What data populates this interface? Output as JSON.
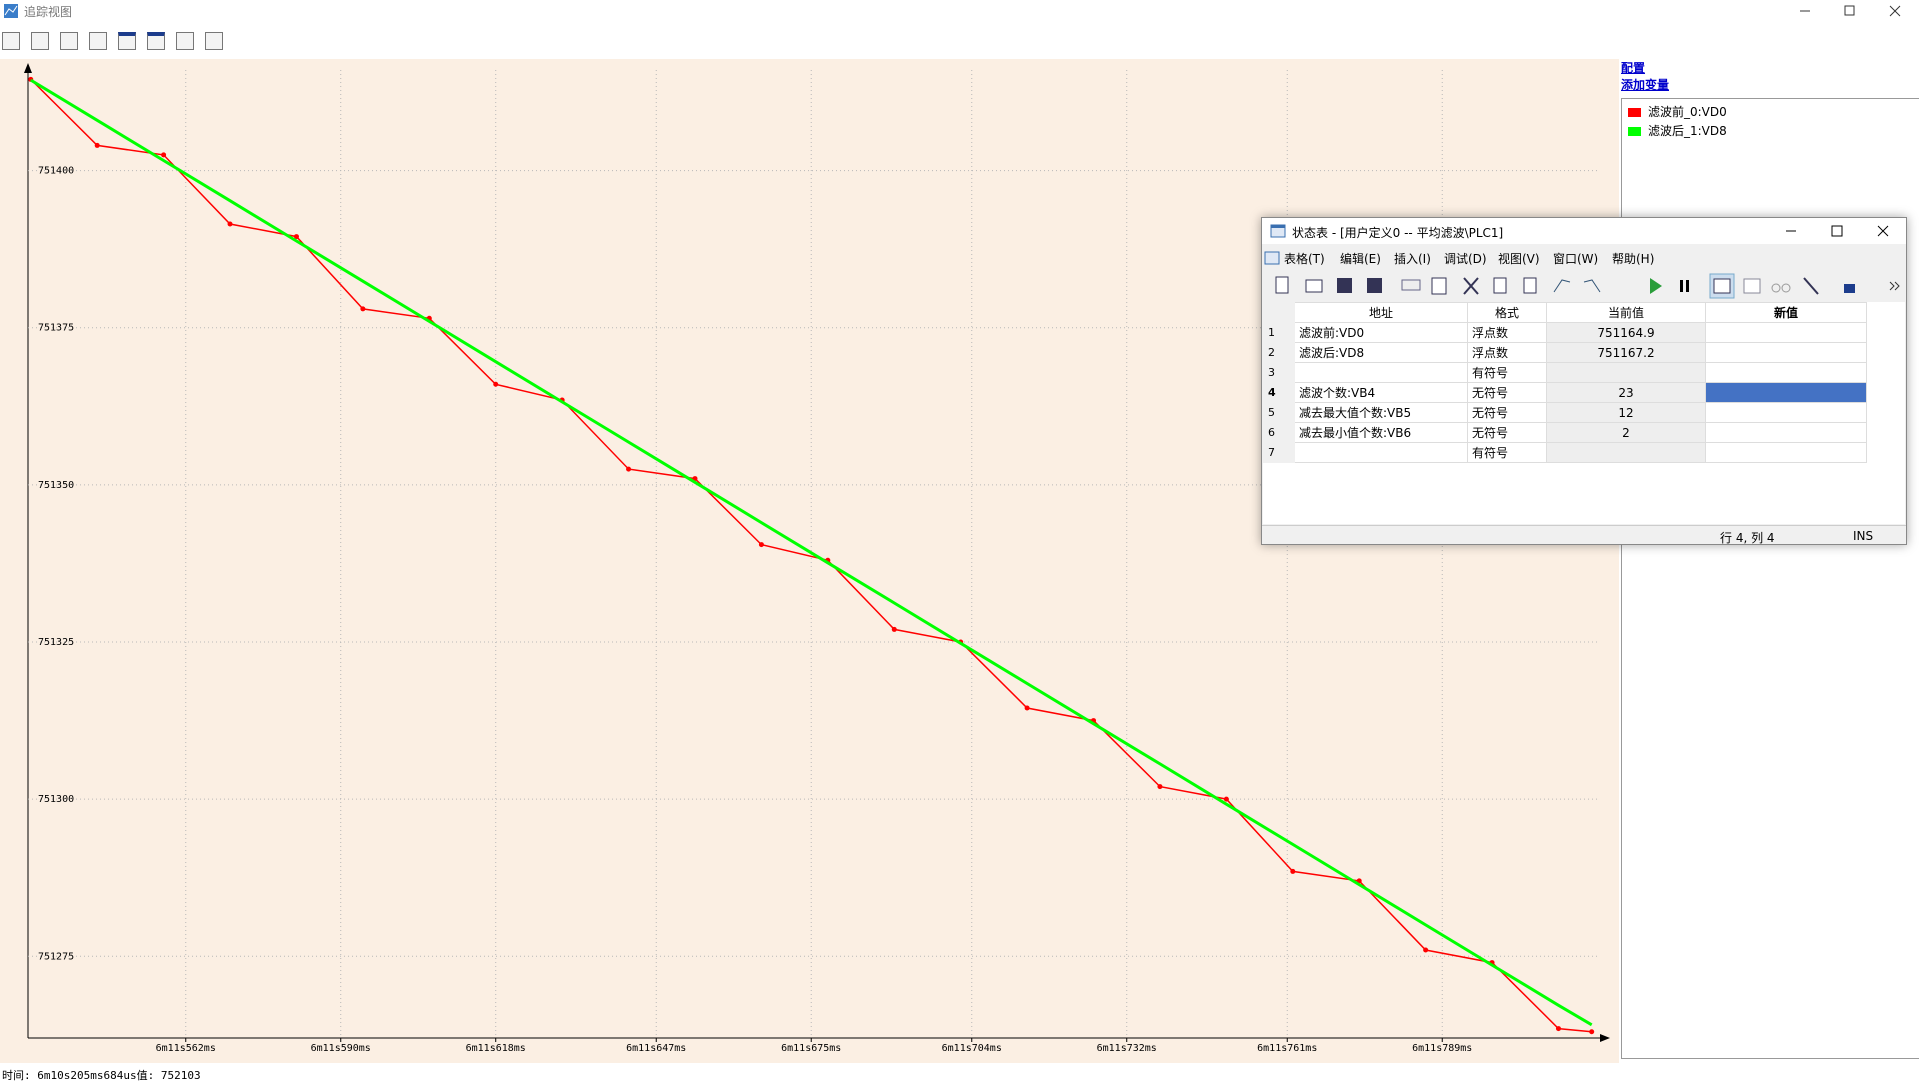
{
  "app_title": "追踪视图",
  "chart_data": {
    "type": "line",
    "x": [
      534,
      546,
      558,
      570,
      582,
      594,
      606,
      618,
      630,
      642,
      654,
      666,
      678,
      690,
      702,
      714,
      726,
      738,
      750,
      762,
      774,
      786,
      798,
      810,
      816
    ],
    "xlim": [
      533.5,
      817.5
    ],
    "xticks": [
      {
        "value": 562,
        "label": "6m11s562ms"
      },
      {
        "value": 590,
        "label": "6m11s590ms"
      },
      {
        "value": 618,
        "label": "6m11s618ms"
      },
      {
        "value": 647,
        "label": "6m11s647ms"
      },
      {
        "value": 675,
        "label": "6m11s675ms"
      },
      {
        "value": 704,
        "label": "6m11s704ms"
      },
      {
        "value": 732,
        "label": "6m11s732ms"
      },
      {
        "value": 761,
        "label": "6m11s761ms"
      },
      {
        "value": 789,
        "label": "6m11s789ms"
      }
    ],
    "ylim": [
      751262,
      751416
    ],
    "yticks": [
      751275,
      751300,
      751325,
      751350,
      751375,
      751400
    ],
    "grid": true,
    "series": [
      {
        "name": "滤波前_0:VD0",
        "color": "#ff0000",
        "values": [
          751414.5,
          751404.0,
          751402.5,
          751391.5,
          751389.5,
          751378.0,
          751376.5,
          751366.0,
          751363.5,
          751352.5,
          751351.0,
          751340.5,
          751338.0,
          751327.0,
          751325.0,
          751314.5,
          751312.5,
          751302.0,
          751300.0,
          751288.5,
          751287.0,
          751276.0,
          751274.0,
          751263.5,
          751263.0
        ]
      },
      {
        "name": "滤波后_1:VD8",
        "color": "#00ff00",
        "values": [
          751414.4,
          751408.0,
          751401.6,
          751395.2,
          751388.8,
          751382.4,
          751376.0,
          751369.6,
          751363.2,
          751356.8,
          751350.4,
          751344.0,
          751337.6,
          751331.2,
          751324.8,
          751318.4,
          751312.0,
          751305.6,
          751299.2,
          751292.8,
          751286.4,
          751280.0,
          751273.6,
          751267.2,
          751264.1
        ]
      }
    ]
  },
  "links": [
    "配置",
    "添加变量"
  ],
  "status": "时间: 6m10s205ms684us值: 752103",
  "status_window": {
    "title": "状态表 - [用户定义0 -- 平均滤波\\PLC1]",
    "menu": [
      "表格(T)",
      "编辑(E)",
      "插入(I)",
      "调试(D)",
      "视图(V)",
      "窗口(W)",
      "帮助(H)"
    ],
    "table": {
      "headers": [
        "地址",
        "格式",
        "当前值",
        "新值"
      ],
      "rows": [
        [
          1,
          "滤波前:VD0",
          "浮点数",
          751164.9,
          null
        ],
        [
          2,
          "滤波后:VD8",
          "浮点数",
          751167.2,
          null
        ],
        [
          3,
          null,
          "有符号",
          null,
          null
        ],
        [
          4,
          "滤波个数:VB4",
          "无符号",
          23,
          null
        ],
        [
          5,
          "减去最大值个数:VB5",
          "无符号",
          12,
          null
        ],
        [
          6,
          "减去最小值个数:VB6",
          "无符号",
          2,
          null
        ],
        [
          7,
          null,
          "有符号",
          null,
          null
        ]
      ]
    },
    "status_position": "行 4, 列 4",
    "status_mode": "INS"
  }
}
